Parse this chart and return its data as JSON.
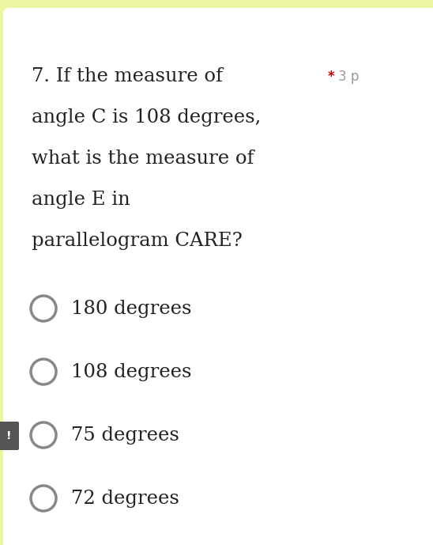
{
  "background_yellow": "#eef5a0",
  "background_card": "#ffffff",
  "question_text_lines": [
    "7. If the measure of",
    "angle C is 108 degrees,",
    "what is the measure of",
    "angle E in",
    "parallelogram CARE?"
  ],
  "points_star_color": "#cc0000",
  "points_text_color": "#999999",
  "options": [
    "180 degrees",
    "108 degrees",
    "75 degrees",
    "72 degrees"
  ],
  "option_circle_color": "#888888",
  "text_color": "#222222",
  "question_fontsize": 17.5,
  "option_fontsize": 17.5,
  "side_button_color": "#555555",
  "side_button_text": "!"
}
